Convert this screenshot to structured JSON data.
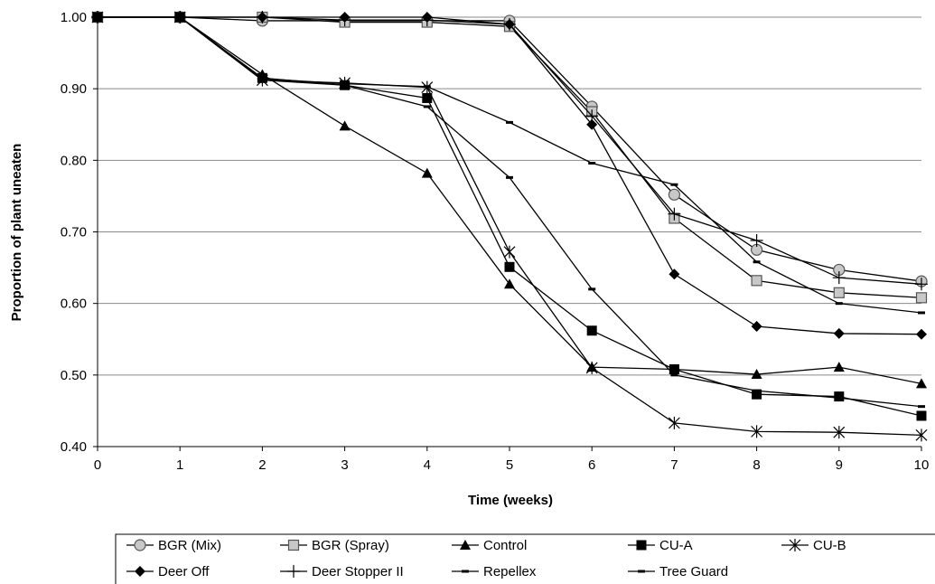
{
  "chart_data": {
    "type": "line",
    "title": "",
    "xlabel": "Time (weeks)",
    "ylabel": "Proportion of plant uneaten",
    "x": [
      0,
      1,
      2,
      3,
      4,
      5,
      6,
      7,
      8,
      9,
      10
    ],
    "xlim": [
      0,
      10
    ],
    "ylim": [
      0.4,
      1.0
    ],
    "x_ticks": [
      "0",
      "1",
      "2",
      "3",
      "4",
      "5",
      "6",
      "7",
      "8",
      "9",
      "10"
    ],
    "y_ticks": [
      "0.40",
      "0.50",
      "0.60",
      "0.70",
      "0.80",
      "0.90",
      "1.00"
    ],
    "grid": "horizontal",
    "legend_position": "bottom",
    "series": [
      {
        "name": "BGR (Mix)",
        "marker": "circle-open",
        "values": [
          1.0,
          1.0,
          0.995,
          0.995,
          0.995,
          0.995,
          0.875,
          0.752,
          0.675,
          0.647,
          0.631
        ]
      },
      {
        "name": "BGR (Spray)",
        "marker": "square-open",
        "values": [
          1.0,
          1.0,
          1.0,
          0.993,
          0.993,
          0.987,
          0.868,
          0.719,
          0.632,
          0.615,
          0.608
        ]
      },
      {
        "name": "Control",
        "marker": "triangle",
        "values": [
          1.0,
          1.0,
          0.92,
          0.848,
          0.782,
          0.627,
          0.511,
          0.508,
          0.501,
          0.511,
          0.488
        ]
      },
      {
        "name": "CU-A",
        "marker": "square",
        "values": [
          1.0,
          1.0,
          0.915,
          0.905,
          0.887,
          0.651,
          0.562,
          0.508,
          0.473,
          0.47,
          0.443
        ]
      },
      {
        "name": "CU-B",
        "marker": "asterisk",
        "values": [
          1.0,
          1.0,
          0.912,
          0.908,
          0.902,
          0.672,
          0.51,
          0.433,
          0.421,
          0.42,
          0.416
        ]
      },
      {
        "name": "Deer Off",
        "marker": "diamond",
        "values": [
          1.0,
          1.0,
          1.0,
          1.0,
          1.0,
          0.99,
          0.85,
          0.641,
          0.568,
          0.558,
          0.557
        ]
      },
      {
        "name": "Deer Stopper II",
        "marker": "plus",
        "values": [
          1.0,
          1.0,
          1.0,
          0.996,
          0.996,
          0.99,
          0.862,
          0.725,
          0.688,
          0.636,
          0.627
        ]
      },
      {
        "name": "Repellex",
        "marker": "dash",
        "values": [
          1.0,
          1.0,
          0.912,
          0.905,
          0.875,
          0.776,
          0.62,
          0.5,
          0.478,
          0.468,
          0.456
        ]
      },
      {
        "name": "Tree Guard",
        "marker": "dash",
        "values": [
          1.0,
          1.0,
          0.914,
          0.907,
          0.903,
          0.853,
          0.796,
          0.766,
          0.658,
          0.6,
          0.587
        ]
      }
    ]
  }
}
